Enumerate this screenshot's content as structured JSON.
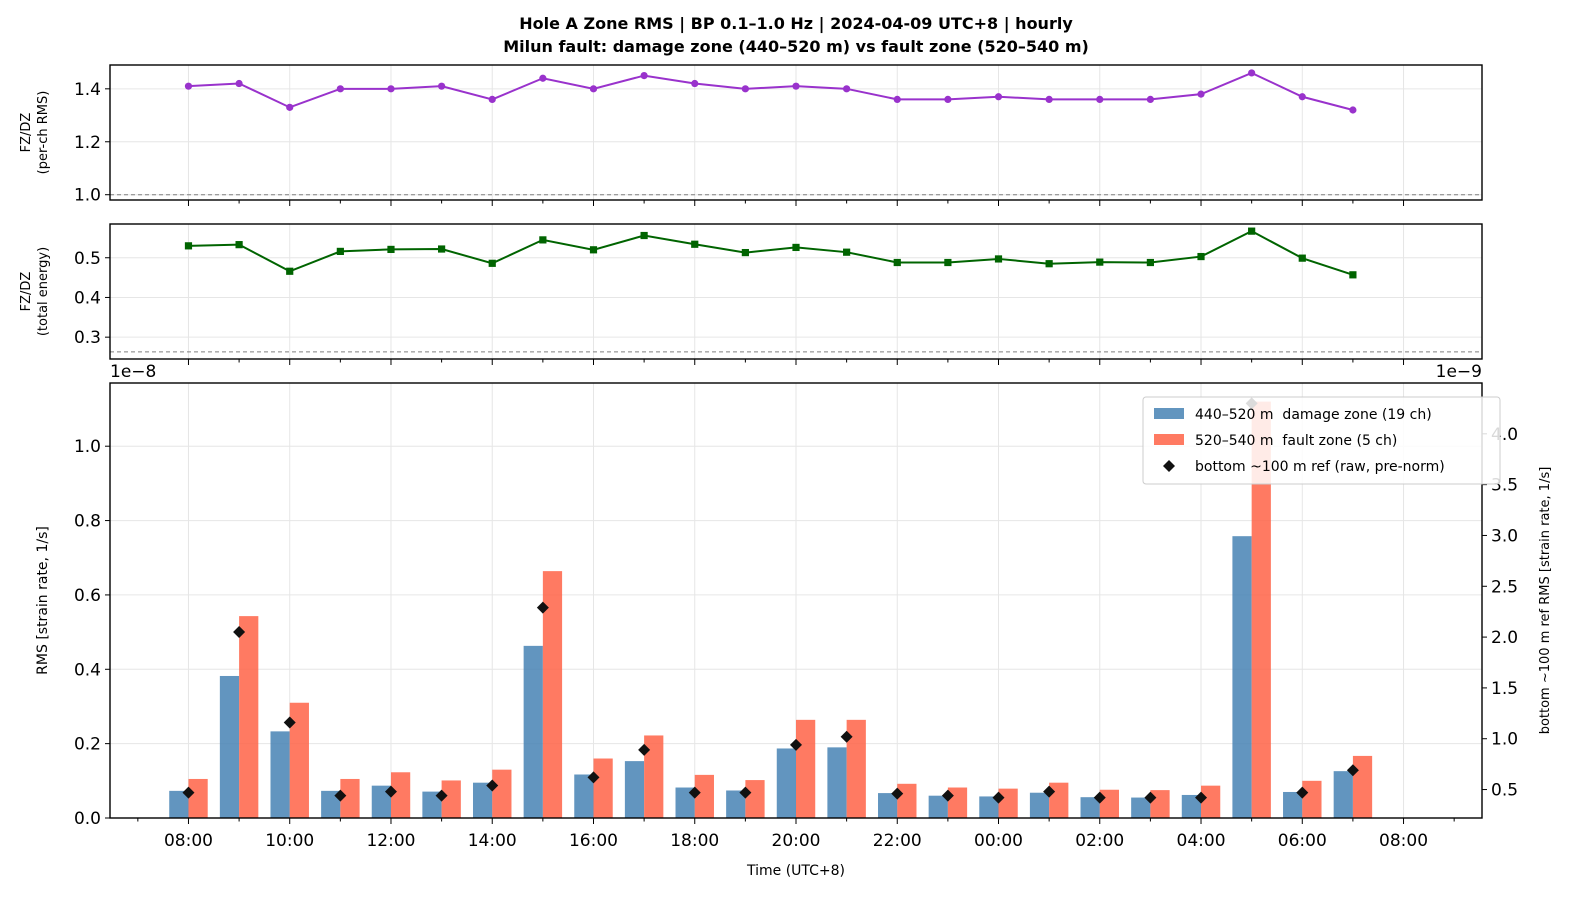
{
  "title_line1": "Hole A Zone RMS  |  BP 0.1–1.0 Hz  |  2024-04-09 UTC+8  |  hourly",
  "title_line2": "Milun fault: damage zone (440–520 m) vs fault zone (520–540 m)",
  "colors": {
    "damage": "#4682b4",
    "fault": "#ff6347",
    "ref": "#111111",
    "ratio_rms": "#9932cc",
    "ratio_energy": "#006400",
    "refline": "#808080"
  },
  "chart_data": [
    {
      "type": "line",
      "panel": "top",
      "ylabel_line1": "FZ/DZ",
      "ylabel_line2": "(per-ch RMS)",
      "ylim": [
        0.98,
        1.49
      ],
      "yticks": [
        1.0,
        1.2,
        1.4
      ],
      "ytick_labels": [
        "1.0",
        "1.2",
        "1.4"
      ],
      "reference_line": 1.0,
      "grid": true,
      "marker": "circle",
      "series": [
        {
          "values": [
            1.41,
            1.42,
            1.33,
            1.4,
            1.4,
            1.41,
            1.36,
            1.44,
            1.4,
            1.45,
            1.42,
            1.4,
            1.41,
            1.4,
            1.36,
            1.36,
            1.37,
            1.36,
            1.36,
            1.36,
            1.38,
            1.46,
            1.37,
            1.32
          ]
        }
      ]
    },
    {
      "type": "line",
      "panel": "middle",
      "ylabel_line1": "FZ/DZ",
      "ylabel_line2": "(total energy)",
      "ylim": [
        0.245,
        0.585
      ],
      "yticks": [
        0.3,
        0.4,
        0.5
      ],
      "ytick_labels": [
        "0.3",
        "0.4",
        "0.5"
      ],
      "reference_line": 0.263,
      "grid": true,
      "marker": "square",
      "series": [
        {
          "values": [
            0.53,
            0.533,
            0.466,
            0.516,
            0.521,
            0.522,
            0.486,
            0.545,
            0.52,
            0.556,
            0.534,
            0.513,
            0.526,
            0.514,
            0.488,
            0.488,
            0.497,
            0.485,
            0.489,
            0.488,
            0.503,
            0.567,
            0.499,
            0.457
          ]
        }
      ]
    },
    {
      "type": "bar",
      "panel": "bottom",
      "xlabel": "Time (UTC+8)",
      "ylabel": "RMS  [strain rate, 1/s]",
      "ylabel_right": "bottom ~100 m ref RMS  [strain rate, 1/s]",
      "ylim": [
        0,
        1.17
      ],
      "ylim_right": [
        0.22,
        4.5
      ],
      "yticks": [
        0.0,
        0.2,
        0.4,
        0.6,
        0.8,
        1.0
      ],
      "ytick_labels": [
        "0.0",
        "0.2",
        "0.4",
        "0.6",
        "0.8",
        "1.0"
      ],
      "yticks_right": [
        0.5,
        1.0,
        1.5,
        2.0,
        2.5,
        3.0,
        3.5,
        4.0
      ],
      "ytick_labels_right": [
        "0.5",
        "1.0",
        "1.5",
        "2.0",
        "2.5",
        "3.0",
        "3.5",
        "4.0"
      ],
      "left_offset_text": "1e−8",
      "right_offset_text": "1e−9",
      "grid": true,
      "legend_position": "top-right",
      "hours_from_start": [
        0,
        1,
        2,
        3,
        4,
        5,
        6,
        7,
        8,
        9,
        10,
        11,
        12,
        13,
        14,
        15,
        16,
        17,
        18,
        19,
        20,
        21,
        22,
        23
      ],
      "x_tick_positions": [
        0,
        2,
        4,
        6,
        8,
        10,
        12,
        14,
        16,
        18,
        20,
        22,
        24
      ],
      "x_tick_labels": [
        "08:00",
        "10:00",
        "12:00",
        "14:00",
        "16:00",
        "18:00",
        "20:00",
        "22:00",
        "00:00",
        "02:00",
        "04:00",
        "06:00",
        "08:00"
      ],
      "series": [
        {
          "name": "440–520 m  damage zone (19 ch)",
          "axis": "left",
          "values": [
            0.073,
            0.382,
            0.233,
            0.073,
            0.087,
            0.071,
            0.095,
            0.463,
            0.117,
            0.153,
            0.082,
            0.074,
            0.187,
            0.19,
            0.067,
            0.06,
            0.058,
            0.068,
            0.056,
            0.055,
            0.062,
            0.758,
            0.07,
            0.126
          ]
        },
        {
          "name": "520–540 m  fault zone (5 ch)",
          "axis": "left",
          "values": [
            0.105,
            0.543,
            0.31,
            0.105,
            0.123,
            0.101,
            0.13,
            0.664,
            0.16,
            0.222,
            0.116,
            0.102,
            0.264,
            0.264,
            0.092,
            0.082,
            0.079,
            0.095,
            0.076,
            0.075,
            0.087,
            1.12,
            0.1,
            0.167
          ]
        },
        {
          "name": "bottom ~100 m ref (raw, pre-norm)",
          "axis": "right",
          "values": [
            0.47,
            2.05,
            1.16,
            0.44,
            0.48,
            0.44,
            0.54,
            2.29,
            0.62,
            0.89,
            0.47,
            0.47,
            0.94,
            1.02,
            0.46,
            0.44,
            0.42,
            0.48,
            0.42,
            0.42,
            0.42,
            4.3,
            0.47,
            0.69
          ]
        }
      ]
    }
  ]
}
